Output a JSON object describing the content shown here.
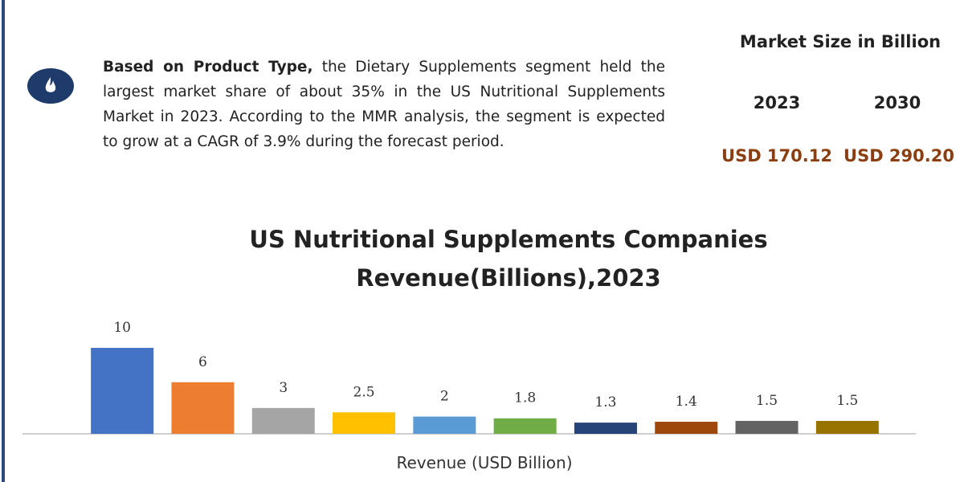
{
  "summary": {
    "lead": "Based on Product Type,",
    "text": "the Dietary Supplements segment held the largest market share of about 35% in the US Nutritional Supplements Market in 2023. According to the MMR analysis, the segment is expected to grow at a CAGR of 3.9% during the forecast period."
  },
  "market_size": {
    "title": "Market Size in Billion",
    "years": [
      "2023",
      "2030"
    ],
    "values": [
      "USD 170.12",
      "USD 290.20"
    ]
  },
  "chart_data": {
    "type": "bar",
    "title": "US Nutritional Supplements Companies Revenue(Billions),2023",
    "x_label": "Revenue (USD Billion)",
    "categories": [
      null,
      null,
      null,
      null,
      null,
      null,
      null,
      null,
      null,
      null
    ],
    "values": [
      10,
      6,
      3,
      2.5,
      2,
      1.8,
      1.3,
      1.4,
      1.5,
      1.5
    ],
    "colors": [
      "#4472c4",
      "#ed7d31",
      "#a5a5a5",
      "#ffc000",
      "#5b9bd5",
      "#70ad47",
      "#264478",
      "#9e480e",
      "#636363",
      "#997300"
    ]
  }
}
